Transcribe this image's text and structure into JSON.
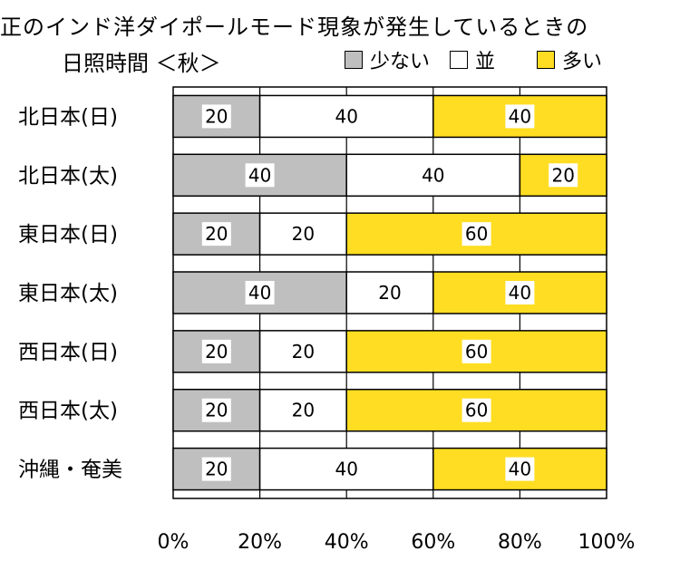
{
  "header": {
    "title_line1": "正のインド洋ダイポールモード現象が発生しているときの",
    "title_line2": "日照時間 ＜秋＞"
  },
  "legend": [
    {
      "label": "少ない",
      "color": "#bfbfbf"
    },
    {
      "label": "並",
      "color": "#ffffff"
    },
    {
      "label": "多い",
      "color": "#ffdd22"
    }
  ],
  "chart_data": {
    "type": "bar",
    "orientation": "horizontal",
    "stacked": true,
    "categories": [
      "北日本(日)",
      "北日本(太)",
      "東日本(日)",
      "東日本(太)",
      "西日本(日)",
      "西日本(太)",
      "沖縄・奄美"
    ],
    "series": [
      {
        "name": "少ない",
        "color": "#bfbfbf",
        "values": [
          20,
          40,
          20,
          40,
          20,
          20,
          20
        ]
      },
      {
        "name": "並",
        "color": "#ffffff",
        "values": [
          40,
          40,
          20,
          20,
          20,
          20,
          40
        ]
      },
      {
        "name": "多い",
        "color": "#ffdd22",
        "values": [
          40,
          20,
          60,
          40,
          60,
          60,
          40
        ]
      }
    ],
    "xlim": [
      0,
      100
    ],
    "xticks": [
      "0%",
      "20%",
      "40%",
      "60%",
      "80%",
      "100%"
    ],
    "grid": true
  }
}
